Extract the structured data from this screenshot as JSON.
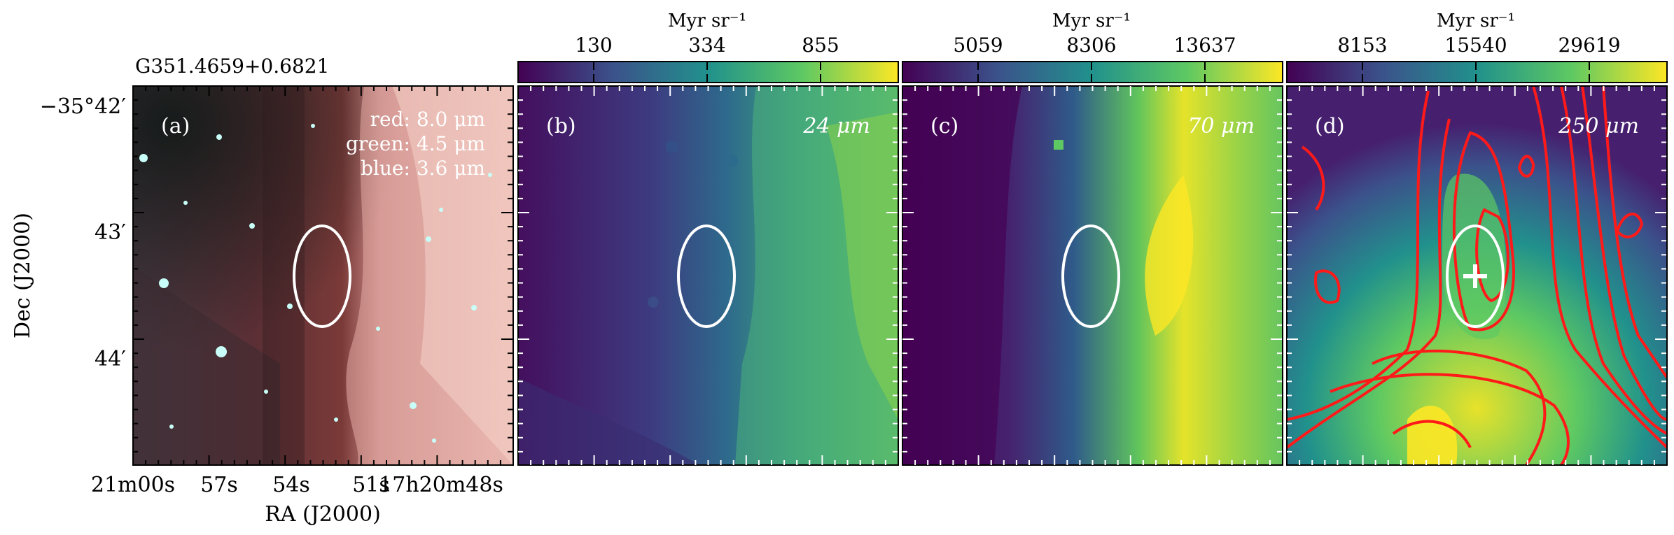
{
  "figure": {
    "source_name": "G351.4659+0.6821",
    "ra_label": "RA (J2000)",
    "dec_label": "Dec (J2000)",
    "dec_ticks": [
      "−35°42′",
      "43′",
      "44′"
    ],
    "ra_ticks": [
      "21m00s",
      "57s",
      "54s",
      "51s",
      "17h20m48s"
    ]
  },
  "panels": [
    {
      "id": "a",
      "tag": "(a)",
      "legend": [
        "red: 8.0 μm",
        "green: 4.5 μm",
        "blue: 3.6 μm"
      ],
      "wavelength": "",
      "colorbar": null,
      "colors": {
        "rgb_bg_left": "#5a3a40",
        "rgb_bg_right": "#e8b8b0",
        "ellipse": "#ffffff"
      }
    },
    {
      "id": "b",
      "tag": "(b)",
      "wavelength": "24 μm",
      "colorbar": {
        "unit": "Myr sr⁻¹",
        "ticks": [
          "130",
          "334",
          "855"
        ]
      }
    },
    {
      "id": "c",
      "tag": "(c)",
      "wavelength": "70 μm",
      "colorbar": {
        "unit": "Myr sr⁻¹",
        "ticks": [
          "5059",
          "8306",
          "13637"
        ]
      }
    },
    {
      "id": "d",
      "tag": "(d)",
      "wavelength": "250 μm",
      "colorbar": {
        "unit": "Myr sr⁻¹",
        "ticks": [
          "8153",
          "15540",
          "29619"
        ]
      },
      "contour_color": "#ff1a1a"
    }
  ],
  "colormap": [
    "#440154",
    "#3b528b",
    "#21918c",
    "#5ec962",
    "#fde725"
  ]
}
